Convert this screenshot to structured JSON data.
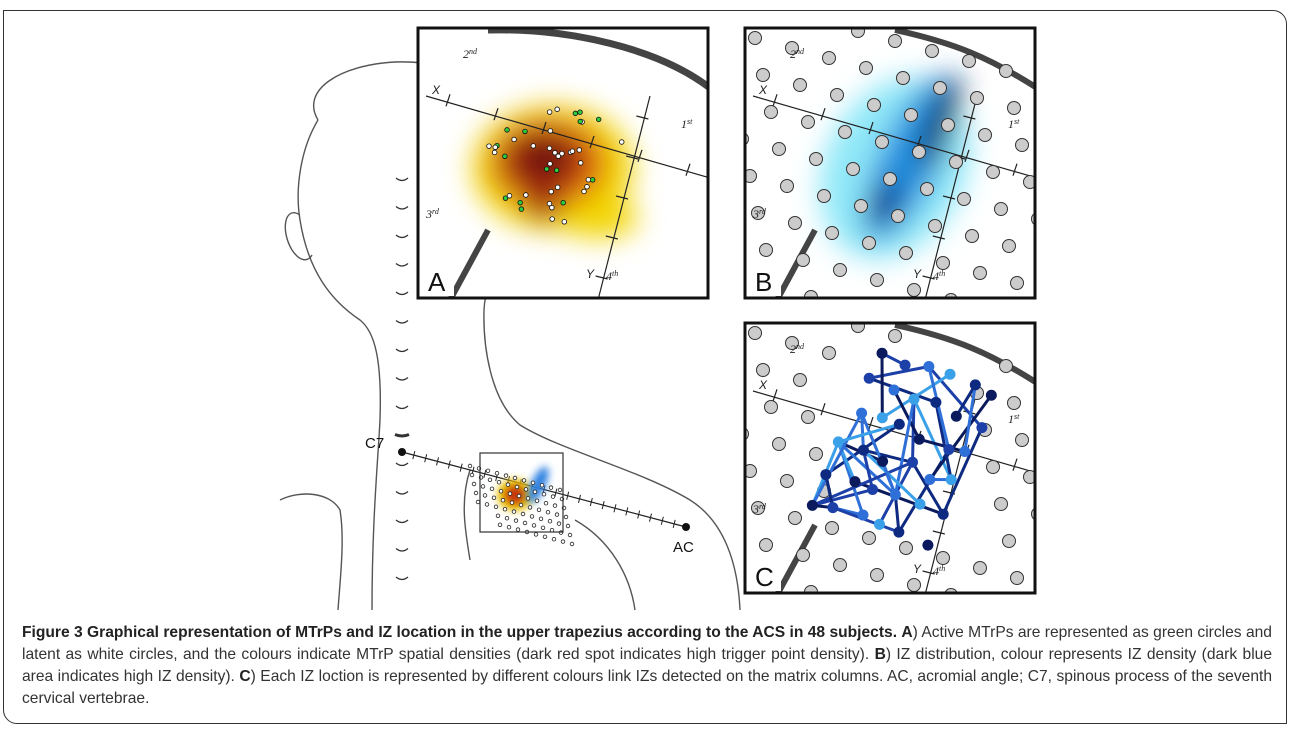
{
  "figure": {
    "panels": [
      "A",
      "B",
      "C"
    ],
    "quadrants": [
      {
        "n": "2",
        "s": "nd"
      },
      {
        "n": "1",
        "s": "st"
      },
      {
        "n": "3",
        "s": "rd"
      },
      {
        "n": "4",
        "s": "th"
      }
    ],
    "axes": [
      "X",
      "Y"
    ],
    "landmarks": [
      "C7",
      "AC"
    ],
    "caption": {
      "title": "Figure 3 Graphical representation of MTrPs and IZ location in the upper trapezius according to the ACS in 48 subjects.",
      "parts": [
        {
          "label": "A",
          "text": ") Active MTrPs are represented as green circles and latent as white circles, and the colours indicate MTrP spatial densities (dark red spot indicates high trigger point density)."
        },
        {
          "label": "B",
          "text": ") IZ distribution, colour represents IZ density (dark blue area indicates high IZ density)."
        },
        {
          "label": "C",
          "text": ") Each IZ loction is represented by different colours link IZs detected on the matrix columns. AC, acromial angle; C7, spinous process of the seventh cervical vertebrae."
        }
      ]
    }
  }
}
